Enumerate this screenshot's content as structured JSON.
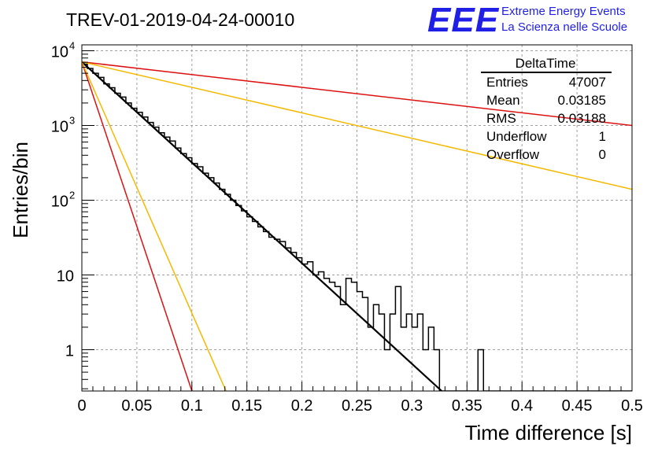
{
  "header": {
    "title": "TREV-01-2019-04-24-00010",
    "logo_text": "EEE",
    "logo_line1": "Extreme Energy Events",
    "logo_line2": "La Scienza nelle Scuole",
    "logo_color": "#1f1fe6"
  },
  "stats_box": {
    "title": "DeltaTime",
    "rows": [
      {
        "label": "Entries",
        "value": "47007"
      },
      {
        "label": "Mean",
        "value": "0.03185"
      },
      {
        "label": "RMS",
        "value": "0.03188"
      },
      {
        "label": "Underflow",
        "value": "1"
      },
      {
        "label": "Overflow",
        "value": "0"
      }
    ]
  },
  "chart_data": {
    "type": "histogram",
    "title": "TREV-01-2019-04-24-00010",
    "xlabel": "Time difference [s]",
    "ylabel": "Entries/bin",
    "xlim": [
      0,
      0.5
    ],
    "ylim": [
      0.28,
      12000
    ],
    "yscale": "log",
    "grid": true,
    "x_ticks": [
      0,
      0.05,
      0.1,
      0.15,
      0.2,
      0.25,
      0.3,
      0.35,
      0.4,
      0.45,
      0.5
    ],
    "x_tick_labels": [
      "0",
      "0.05",
      "0.1",
      "0.15",
      "0.2",
      "0.25",
      "0.3",
      "0.35",
      "0.4",
      "0.45",
      "0.5"
    ],
    "y_ticks": [
      1,
      10,
      100,
      1000,
      10000
    ],
    "y_tick_labels": [
      {
        "base": "1",
        "exp": ""
      },
      {
        "base": "10",
        "exp": ""
      },
      {
        "base": "10",
        "exp": "2"
      },
      {
        "base": "10",
        "exp": "3"
      },
      {
        "base": "10",
        "exp": "4"
      }
    ],
    "histogram": {
      "bin_width": 0.005,
      "color": "#000000",
      "values": [
        6600,
        5800,
        5000,
        4400,
        3600,
        3200,
        2700,
        2400,
        2000,
        1700,
        1500,
        1300,
        1100,
        950,
        800,
        700,
        620,
        500,
        420,
        370,
        310,
        280,
        230,
        200,
        170,
        140,
        120,
        100,
        85,
        72,
        60,
        52,
        44,
        38,
        32,
        30,
        28,
        23,
        20,
        17,
        14,
        15,
        10,
        11,
        9,
        8,
        7,
        4,
        9,
        8,
        6,
        5,
        2,
        4,
        3,
        1,
        3,
        7,
        2,
        3,
        2,
        3,
        1,
        2,
        1,
        0,
        0,
        0,
        0,
        0,
        0,
        0,
        1,
        0,
        0,
        0,
        0,
        0,
        0,
        0,
        0,
        0,
        0,
        0,
        0,
        0,
        0,
        0,
        0,
        0,
        0,
        0,
        0,
        0,
        0,
        0,
        0,
        0,
        0,
        0
      ]
    },
    "lines": [
      {
        "color": "#000000",
        "width": 2.2,
        "points": [
          [
            0,
            7100
          ],
          [
            0.327,
            0.28
          ]
        ]
      },
      {
        "color": "#dd1111",
        "width": 1.5,
        "points": [
          [
            0,
            7100
          ],
          [
            0.5,
            1000
          ]
        ]
      },
      {
        "color": "#dd1111",
        "width": 1.5,
        "points": [
          [
            0,
            7100
          ],
          [
            0.1,
            0.28
          ]
        ]
      },
      {
        "color": "#f5b800",
        "width": 1.5,
        "points": [
          [
            0,
            7100
          ],
          [
            0.5,
            140
          ]
        ]
      },
      {
        "color": "#f5b800",
        "width": 1.5,
        "points": [
          [
            0,
            7100
          ],
          [
            0.131,
            0.28
          ]
        ]
      }
    ]
  }
}
